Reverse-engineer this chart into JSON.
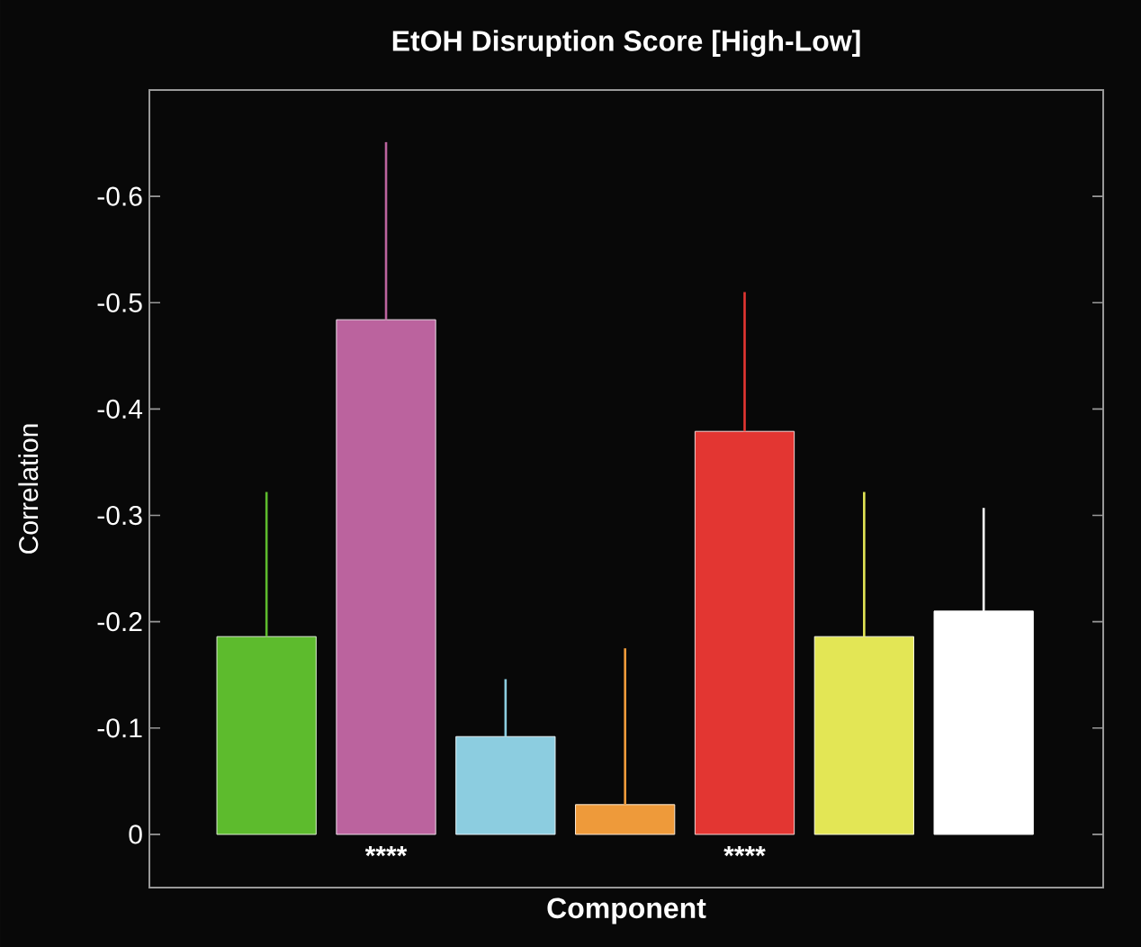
{
  "chart_data": {
    "type": "bar",
    "title": "EtOH Disruption Score [High-Low]",
    "xlabel": "Component",
    "ylabel": "Correlation",
    "categories": [
      null,
      null,
      null,
      null,
      null,
      null,
      null
    ],
    "values": [
      -0.186,
      -0.484,
      -0.092,
      -0.028,
      -0.379,
      -0.186,
      -0.21
    ],
    "colors": [
      "#5dbb2d",
      "#bb639e",
      "#8ccde0",
      "#ee9a3a",
      "#e33632",
      "#e3e655",
      "#ffffff"
    ],
    "errors": [
      [
        -0.322,
        -0.186
      ],
      [
        -0.651,
        -0.484
      ],
      [
        -0.146,
        -0.092
      ],
      [
        -0.175,
        -0.028
      ],
      [
        -0.51,
        -0.379
      ],
      [
        -0.322,
        -0.186
      ],
      [
        -0.307,
        -0.21
      ]
    ],
    "value_labels": [
      null,
      "****",
      null,
      null,
      "****",
      null,
      null
    ],
    "ylim": [
      0.05,
      -0.7
    ],
    "yticks": [
      0,
      -0.1,
      -0.2,
      -0.3,
      -0.4,
      -0.5,
      -0.6
    ],
    "grid": false
  }
}
